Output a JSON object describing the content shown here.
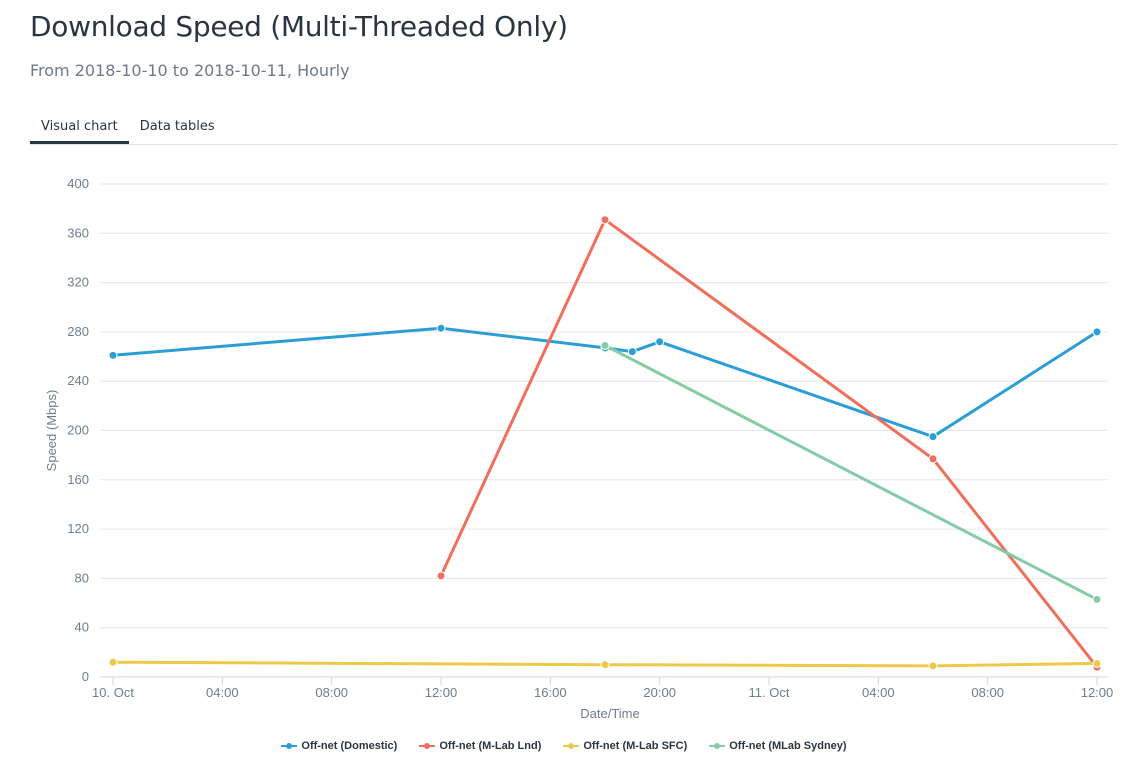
{
  "header": {
    "title": "Download Speed (Multi-Threaded Only)",
    "subtitle": "From 2018-10-10 to 2018-10-11, Hourly"
  },
  "tabs": [
    {
      "label": "Visual chart",
      "active": true
    },
    {
      "label": "Data tables",
      "active": false
    }
  ],
  "chart_data": {
    "type": "line",
    "title": "",
    "xlabel": "Date/Time",
    "ylabel": "Speed (Mbps)",
    "ylim": [
      0,
      400
    ],
    "yticks": [
      0,
      40,
      80,
      120,
      160,
      200,
      240,
      280,
      320,
      360,
      400
    ],
    "xlim": [
      "2018-10-10 00:00",
      "2018-10-11 12:00"
    ],
    "xticks": [
      {
        "x": "2018-10-10 00:00",
        "label": "10. Oct"
      },
      {
        "x": "2018-10-10 04:00",
        "label": "04:00"
      },
      {
        "x": "2018-10-10 08:00",
        "label": "08:00"
      },
      {
        "x": "2018-10-10 12:00",
        "label": "12:00"
      },
      {
        "x": "2018-10-10 16:00",
        "label": "16:00"
      },
      {
        "x": "2018-10-10 20:00",
        "label": "20:00"
      },
      {
        "x": "2018-10-11 00:00",
        "label": "11. Oct"
      },
      {
        "x": "2018-10-11 04:00",
        "label": "04:00"
      },
      {
        "x": "2018-10-11 08:00",
        "label": "08:00"
      },
      {
        "x": "2018-10-11 12:00",
        "label": "12:00"
      }
    ],
    "grid": true,
    "legend_position": "bottom",
    "series": [
      {
        "name": "Off-net (Domestic)",
        "color": "#2b9ed6",
        "points": [
          {
            "x": "2018-10-10 00:00",
            "y": 261
          },
          {
            "x": "2018-10-10 12:00",
            "y": 283
          },
          {
            "x": "2018-10-10 18:00",
            "y": 267
          },
          {
            "x": "2018-10-10 19:00",
            "y": 264
          },
          {
            "x": "2018-10-10 20:00",
            "y": 272
          },
          {
            "x": "2018-10-11 06:00",
            "y": 195
          },
          {
            "x": "2018-10-11 12:00",
            "y": 280
          }
        ]
      },
      {
        "name": "Off-net (M-Lab Lnd)",
        "color": "#ee6f5b",
        "points": [
          {
            "x": "2018-10-10 12:00",
            "y": 82
          },
          {
            "x": "2018-10-10 18:00",
            "y": 371
          },
          {
            "x": "2018-10-11 06:00",
            "y": 177
          },
          {
            "x": "2018-10-11 12:00",
            "y": 8
          }
        ]
      },
      {
        "name": "Off-net (M-Lab SFC)",
        "color": "#ecc94b",
        "points": [
          {
            "x": "2018-10-10 00:00",
            "y": 12
          },
          {
            "x": "2018-10-10 18:00",
            "y": 10
          },
          {
            "x": "2018-10-11 06:00",
            "y": 9
          },
          {
            "x": "2018-10-11 12:00",
            "y": 11
          }
        ]
      },
      {
        "name": "Off-net (MLab Sydney)",
        "color": "#84cba6",
        "points": [
          {
            "x": "2018-10-10 18:00",
            "y": 269
          },
          {
            "x": "2018-10-11 12:00",
            "y": 63
          }
        ]
      }
    ]
  }
}
